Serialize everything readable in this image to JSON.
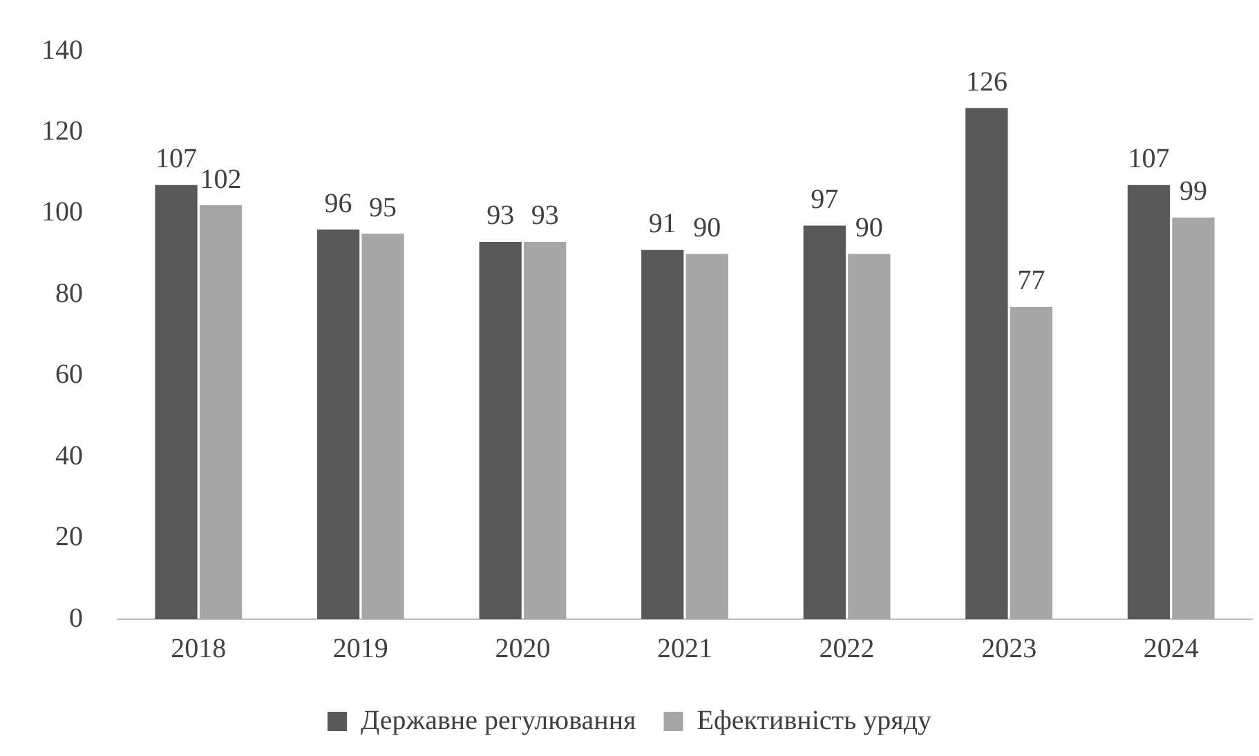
{
  "chart_data": {
    "type": "bar",
    "categories": [
      "2018",
      "2019",
      "2020",
      "2021",
      "2022",
      "2023",
      "2024"
    ],
    "series": [
      {
        "name": "Державне регулювання",
        "color": "#595959",
        "values": [
          107,
          96,
          93,
          91,
          97,
          126,
          107
        ]
      },
      {
        "name": "Ефективність уряду",
        "color": "#a6a6a6",
        "values": [
          102,
          95,
          93,
          90,
          90,
          77,
          99
        ]
      }
    ],
    "ylim": [
      0,
      140
    ],
    "yticks": [
      0,
      20,
      40,
      60,
      80,
      100,
      120,
      140
    ],
    "grid": false,
    "legend": "bottom",
    "data_labels": true
  }
}
